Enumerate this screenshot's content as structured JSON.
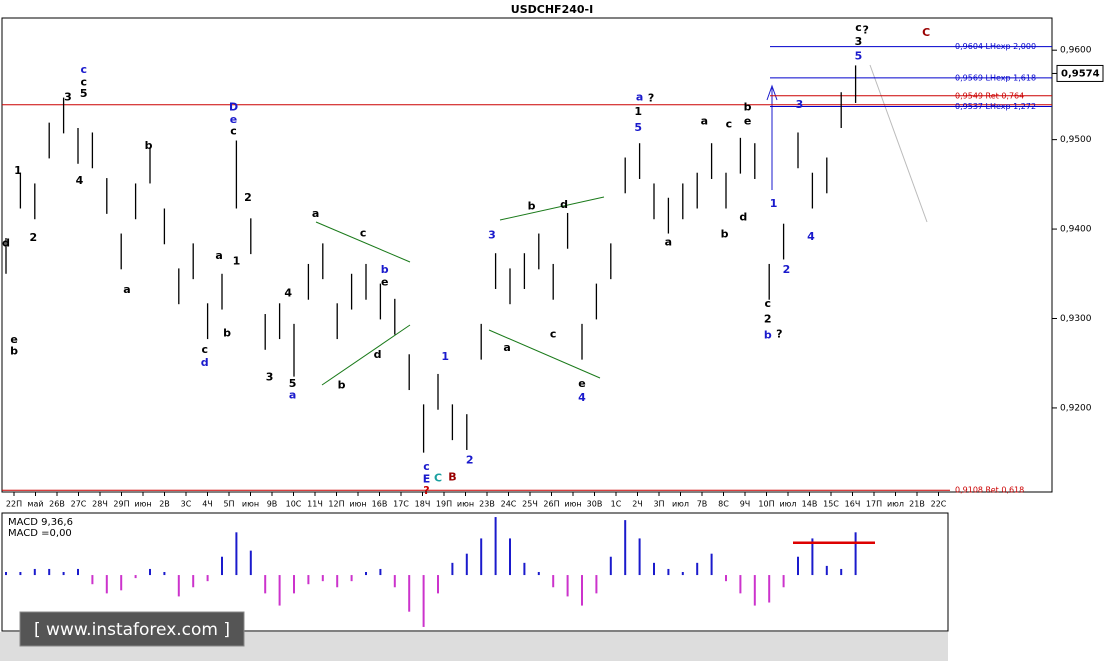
{
  "chart_data": {
    "type": "ohlc",
    "title": "USDCHF240-I",
    "color": "#000000",
    "high": [
      0.939,
      0.9463,
      0.9451,
      0.9519,
      0.9547,
      0.9513,
      0.9508,
      0.9457,
      0.9395,
      0.9451,
      0.9491,
      0.9423,
      0.9356,
      0.9384,
      0.9317,
      0.935,
      0.9499,
      0.9412,
      0.9305,
      0.9317,
      0.9294,
      0.9361,
      0.9384,
      0.9317,
      0.935,
      0.9361,
      0.9339,
      0.9322,
      0.926,
      0.9204,
      0.9238,
      0.9204,
      0.9193,
      0.9294,
      0.9373,
      0.9356,
      0.9373,
      0.9395,
      0.9361,
      0.9418,
      0.9294,
      0.9339,
      0.9384,
      0.948,
      0.9496,
      0.9451,
      0.9435,
      0.9451,
      0.9463,
      0.9496,
      0.9463,
      0.9502,
      0.9496,
      0.9361,
      0.9406,
      0.9508,
      0.9463,
      0.948,
      0.9553,
      0.9583
    ],
    "low": [
      0.935,
      0.9423,
      0.9411,
      0.9479,
      0.9507,
      0.9473,
      0.9468,
      0.9417,
      0.9355,
      0.9411,
      0.9451,
      0.9383,
      0.9316,
      0.9344,
      0.9277,
      0.931,
      0.9423,
      0.9372,
      0.9265,
      0.9277,
      0.9235,
      0.9321,
      0.9344,
      0.9277,
      0.931,
      0.9321,
      0.9299,
      0.9282,
      0.922,
      0.915,
      0.9198,
      0.9164,
      0.9153,
      0.9254,
      0.9333,
      0.9316,
      0.9333,
      0.9355,
      0.9321,
      0.9378,
      0.9254,
      0.9299,
      0.9344,
      0.944,
      0.9456,
      0.9411,
      0.9395,
      0.9411,
      0.9423,
      0.9456,
      0.9423,
      0.9462,
      0.9456,
      0.9321,
      0.9366,
      0.9468,
      0.9423,
      0.944,
      0.9513,
      0.9541
    ],
    "ylim": [
      0.9106,
      0.9636
    ],
    "yticks": [
      {
        "value": 0.96,
        "label": "0,9600"
      },
      {
        "value": 0.95,
        "label": "0,9500"
      },
      {
        "value": 0.94,
        "label": "0,9400"
      },
      {
        "value": 0.93,
        "label": "0,9300"
      },
      {
        "value": 0.92,
        "label": "0,9200"
      }
    ],
    "x_tick_labels": [
      "22П",
      "май",
      "26В",
      "27С",
      "28Ч",
      "29П",
      "июн",
      "2В",
      "3С",
      "4Ч",
      "5П",
      "июн",
      "9В",
      "10С",
      "11Ч",
      "12П",
      "июн",
      "16В",
      "17С",
      "18Ч",
      "19П",
      "июн",
      "23В",
      "24С",
      "25Ч",
      "26П",
      "июн",
      "30В",
      "1С",
      "2Ч",
      "3П",
      "июл",
      "7В",
      "8С",
      "9Ч",
      "10П",
      "июл",
      "14В",
      "15С",
      "16Ч",
      "17П",
      "июл",
      "21В",
      "22С"
    ],
    "current_price": {
      "value": 0.9574,
      "label": "0,9574"
    },
    "horizontal_line": {
      "value": 0.9539,
      "color": "#cc0000"
    },
    "levels": [
      {
        "value": 0.9604,
        "label": "0,9604 LHexp 2,000",
        "color": "#0000cc"
      },
      {
        "value": 0.9569,
        "label": "0,9569 LHexp 1,618",
        "color": "#0000cc"
      },
      {
        "value": 0.9549,
        "label": "0,9549 Ret 0,764",
        "color": "#cc0000"
      },
      {
        "value": 0.9537,
        "label": "0,9537 LHexp 1,272",
        "color": "#0000cc"
      },
      {
        "value": 0.9108,
        "label": "0,9108 Ret 0,618",
        "color": "#cc0000"
      }
    ],
    "annotations": [
      {
        "text": "d",
        "color": "#000000",
        "x": 0,
        "y": 0.9384
      },
      {
        "text": "e",
        "color": "#000000",
        "x": 0.56,
        "y": 0.9276
      },
      {
        "text": "b",
        "color": "#000000",
        "x": 0.56,
        "y": 0.9263
      },
      {
        "text": "1",
        "color": "#000000",
        "x": 0.83,
        "y": 0.9465
      },
      {
        "text": "2",
        "color": "#000000",
        "x": 1.9,
        "y": 0.939
      },
      {
        "text": "3",
        "color": "#000000",
        "x": 4.3,
        "y": 0.9547
      },
      {
        "text": "4",
        "color": "#000000",
        "x": 5.1,
        "y": 0.9454
      },
      {
        "text": "c",
        "color": "#1a1acc",
        "x": 5.4,
        "y": 0.9578
      },
      {
        "text": "c",
        "color": "#000000",
        "x": 5.4,
        "y": 0.9564
      },
      {
        "text": "5",
        "color": "#000000",
        "x": 5.4,
        "y": 0.9551
      },
      {
        "text": "b",
        "color": "#000000",
        "x": 9.9,
        "y": 0.9493
      },
      {
        "text": "a",
        "color": "#000000",
        "x": 8.4,
        "y": 0.9332
      },
      {
        "text": "a",
        "color": "#000000",
        "x": 14.8,
        "y": 0.937
      },
      {
        "text": "b",
        "color": "#000000",
        "x": 15.35,
        "y": 0.9283
      },
      {
        "text": "c",
        "color": "#000000",
        "x": 13.8,
        "y": 0.9265
      },
      {
        "text": "d",
        "color": "#1a1acc",
        "x": 13.8,
        "y": 0.925
      },
      {
        "text": "D",
        "color": "#1a1acc",
        "x": 15.8,
        "y": 0.9536
      },
      {
        "text": "e",
        "color": "#1a1acc",
        "x": 15.8,
        "y": 0.9522
      },
      {
        "text": "c",
        "color": "#000000",
        "x": 15.8,
        "y": 0.9509
      },
      {
        "text": "2",
        "color": "#000000",
        "x": 16.8,
        "y": 0.9435
      },
      {
        "text": "1",
        "color": "#000000",
        "x": 16.0,
        "y": 0.9364
      },
      {
        "text": "3",
        "color": "#000000",
        "x": 18.3,
        "y": 0.9234
      },
      {
        "text": "4",
        "color": "#000000",
        "x": 19.6,
        "y": 0.9328
      },
      {
        "text": "5",
        "color": "#000000",
        "x": 19.9,
        "y": 0.9227
      },
      {
        "text": "a",
        "color": "#1a1acc",
        "x": 19.9,
        "y": 0.9214
      },
      {
        "text": "a",
        "color": "#000000",
        "x": 21.5,
        "y": 0.9417
      },
      {
        "text": "c",
        "color": "#000000",
        "x": 24.8,
        "y": 0.9395
      },
      {
        "text": "b",
        "color": "#1a1acc",
        "x": 26.3,
        "y": 0.9354
      },
      {
        "text": "e",
        "color": "#000000",
        "x": 26.3,
        "y": 0.934
      },
      {
        "text": "d",
        "color": "#000000",
        "x": 25.8,
        "y": 0.9259
      },
      {
        "text": "b",
        "color": "#000000",
        "x": 23.3,
        "y": 0.9225
      },
      {
        "text": "1",
        "color": "#1a1acc",
        "x": 30.5,
        "y": 0.9257
      },
      {
        "text": "2",
        "color": "#1a1acc",
        "x": 32.2,
        "y": 0.9141
      },
      {
        "text": "c",
        "color": "#1a1acc",
        "x": 29.2,
        "y": 0.9134
      },
      {
        "text": "E",
        "color": "#1a1acc",
        "x": 29.2,
        "y": 0.912
      },
      {
        "text": "C",
        "color": "#1aa0a0",
        "x": 30.0,
        "y": 0.9121
      },
      {
        "text": "B",
        "color": "#990000",
        "x": 31.0,
        "y": 0.9122
      },
      {
        "text": "?",
        "color": "#cc0000",
        "x": 29.2,
        "y": 0.9107
      },
      {
        "text": "3",
        "color": "#1a1acc",
        "x": 33.75,
        "y": 0.9393
      },
      {
        "text": "a",
        "color": "#000000",
        "x": 34.8,
        "y": 0.9267
      },
      {
        "text": "b",
        "color": "#000000",
        "x": 36.5,
        "y": 0.9425
      },
      {
        "text": "c",
        "color": "#000000",
        "x": 38.0,
        "y": 0.9282
      },
      {
        "text": "d",
        "color": "#000000",
        "x": 38.75,
        "y": 0.9427
      },
      {
        "text": "e",
        "color": "#000000",
        "x": 40.0,
        "y": 0.9227
      },
      {
        "text": "4",
        "color": "#1a1acc",
        "x": 40.0,
        "y": 0.9211
      },
      {
        "text": "a",
        "color": "#1a1acc",
        "x": 44.0,
        "y": 0.9547
      },
      {
        "text": "?",
        "color": "#000000",
        "x": 44.8,
        "y": 0.9546
      },
      {
        "text": "1",
        "color": "#000000",
        "x": 43.9,
        "y": 0.9531
      },
      {
        "text": "5",
        "color": "#1a1acc",
        "x": 43.9,
        "y": 0.9513
      },
      {
        "text": "a",
        "color": "#000000",
        "x": 46.0,
        "y": 0.9385
      },
      {
        "text": "a",
        "color": "#000000",
        "x": 48.5,
        "y": 0.952
      },
      {
        "text": "b",
        "color": "#000000",
        "x": 49.9,
        "y": 0.9394
      },
      {
        "text": "c",
        "color": "#000000",
        "x": 50.2,
        "y": 0.9517
      },
      {
        "text": "d",
        "color": "#000000",
        "x": 51.2,
        "y": 0.9413
      },
      {
        "text": "e",
        "color": "#000000",
        "x": 51.5,
        "y": 0.952
      },
      {
        "text": "b",
        "color": "#000000",
        "x": 51.5,
        "y": 0.9536
      },
      {
        "text": "1",
        "color": "#1a1acc",
        "x": 53.3,
        "y": 0.9428
      },
      {
        "text": "2",
        "color": "#1a1acc",
        "x": 54.2,
        "y": 0.9354
      },
      {
        "text": "c",
        "color": "#000000",
        "x": 52.9,
        "y": 0.9316
      },
      {
        "text": "2",
        "color": "#000000",
        "x": 52.9,
        "y": 0.9299
      },
      {
        "text": "b",
        "color": "#1a1acc",
        "x": 52.9,
        "y": 0.9281
      },
      {
        "text": "?",
        "color": "#000000",
        "x": 53.7,
        "y": 0.9282
      },
      {
        "text": "3",
        "color": "#1a1acc",
        "x": 55.1,
        "y": 0.9539
      },
      {
        "text": "4",
        "color": "#1a1acc",
        "x": 55.9,
        "y": 0.9391
      },
      {
        "text": "5",
        "color": "#1a1acc",
        "x": 59.2,
        "y": 0.9593
      },
      {
        "text": "3",
        "color": "#000000",
        "x": 59.2,
        "y": 0.9609
      },
      {
        "text": "c",
        "color": "#000000",
        "x": 59.2,
        "y": 0.9625
      },
      {
        "text": "?",
        "color": "#000000",
        "x": 59.7,
        "y": 0.9622
      },
      {
        "text": "C",
        "color": "#990000",
        "x": 63.9,
        "y": 0.9619
      }
    ],
    "macd": {
      "labels": [
        "MACD 9,36,6",
        "MACD =0,00"
      ],
      "values": [
        0.05,
        0.05,
        0.1,
        0.1,
        0.05,
        0.1,
        -0.15,
        -0.3,
        -0.25,
        -0.05,
        0.1,
        0.05,
        -0.35,
        -0.2,
        -0.1,
        0.3,
        0.7,
        0.4,
        -0.3,
        -0.5,
        -0.3,
        -0.15,
        -0.1,
        -0.2,
        -0.1,
        0.05,
        0.1,
        -0.2,
        -0.6,
        -0.85,
        -0.3,
        0.2,
        0.35,
        0.6,
        0.95,
        0.6,
        0.2,
        0.05,
        -0.2,
        -0.35,
        -0.5,
        -0.3,
        0.3,
        0.9,
        0.6,
        0.2,
        0.1,
        0.05,
        0.2,
        0.35,
        -0.1,
        -0.3,
        -0.5,
        -0.45,
        -0.2,
        0.3,
        0.6,
        0.15,
        0.1,
        0.7
      ],
      "ylim": [
        -0.9,
        1.0
      ],
      "colors": [
        "#1a1acc",
        "#cc33cc"
      ],
      "level": {
        "value": 0.53,
        "color": "#dd0000"
      }
    },
    "watermark": "[ www.instaforex.com ]"
  }
}
